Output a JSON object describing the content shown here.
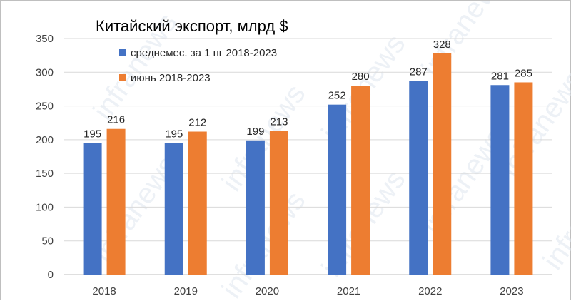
{
  "watermark": "infranews",
  "colors": {
    "series1": "#4472C4",
    "series2": "#ED7D31",
    "grid": "#d9d9d9",
    "axis": "#bfbfbf"
  },
  "chart_data": {
    "type": "bar",
    "title": "Китайский экспорт, млрд $",
    "xlabel": "",
    "ylabel": "",
    "categories": [
      "2018",
      "2019",
      "2020",
      "2021",
      "2022",
      "2023"
    ],
    "ylim": [
      0,
      350
    ],
    "yticks": [
      0,
      50,
      100,
      150,
      200,
      250,
      300,
      350
    ],
    "grid": true,
    "legend_position": "top-left",
    "series": [
      {
        "name": "среднемес. за 1 пг 2018-2023",
        "color": "#4472C4",
        "values": [
          195,
          195,
          199,
          252,
          287,
          281
        ]
      },
      {
        "name": "июнь 2018-2023",
        "color": "#ED7D31",
        "values": [
          216,
          212,
          213,
          280,
          328,
          285
        ]
      }
    ]
  }
}
